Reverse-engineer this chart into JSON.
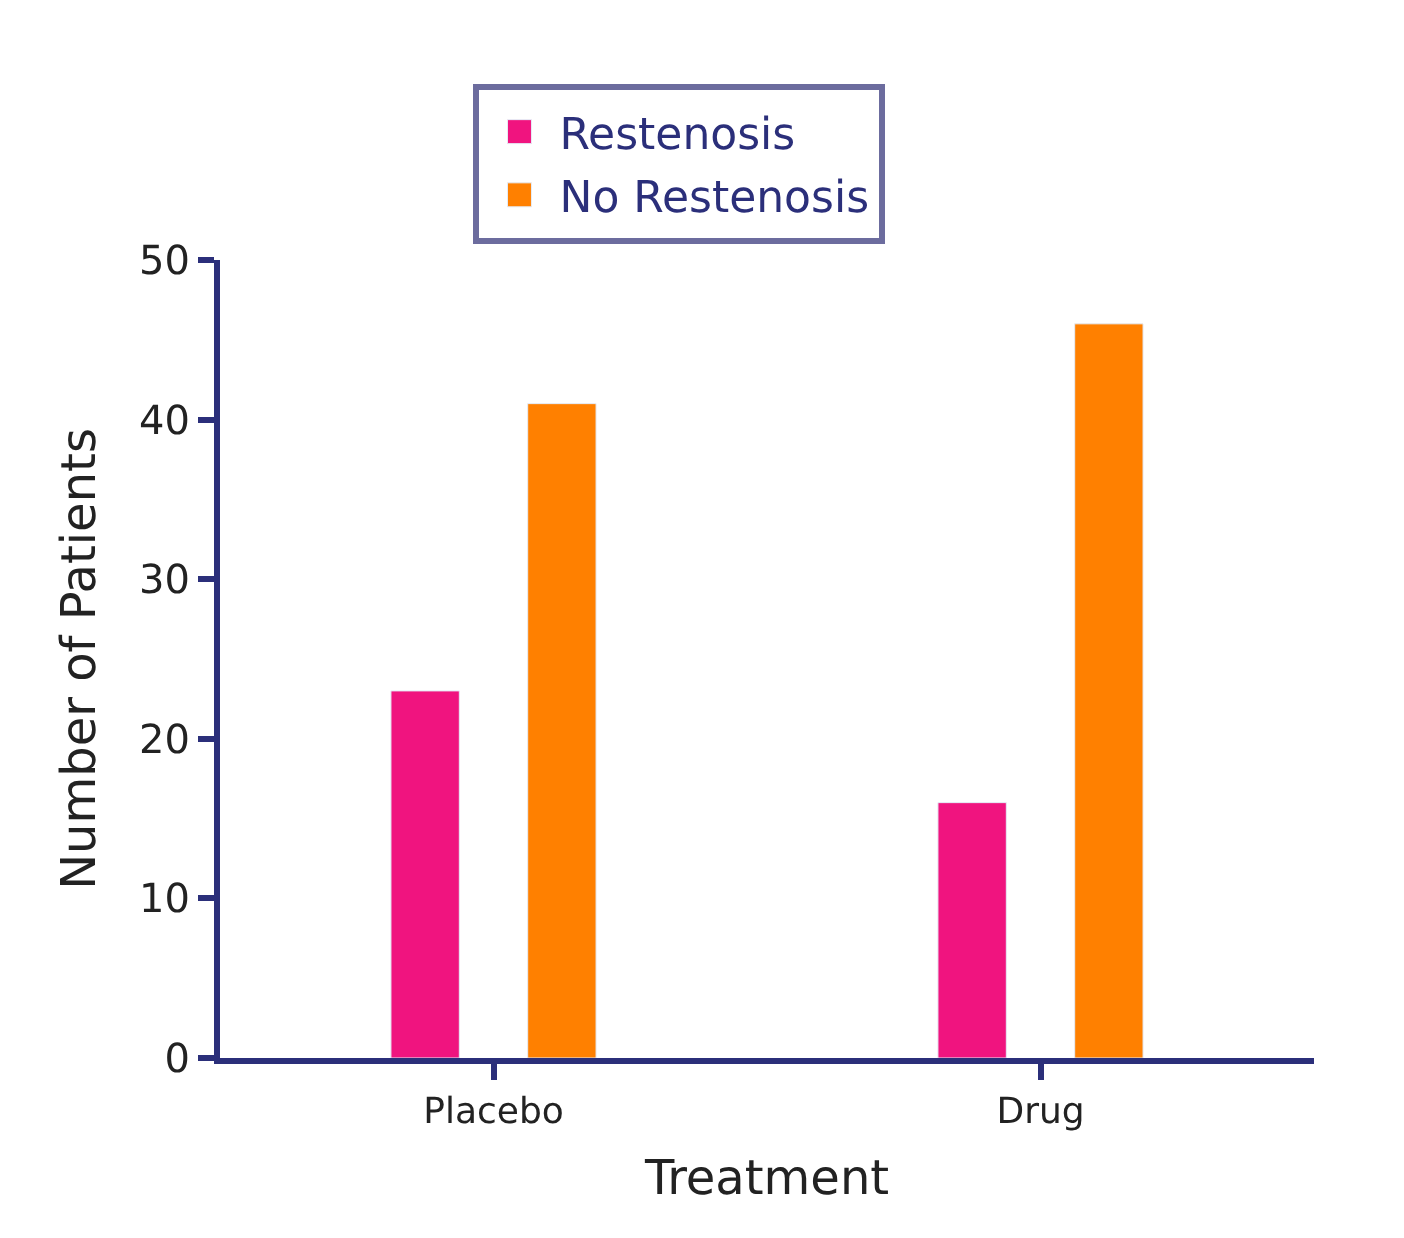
{
  "chart_data": {
    "type": "bar",
    "xlabel": "Treatment",
    "ylabel": "Number of Patients",
    "categories": [
      "Placebo",
      "Drug"
    ],
    "series": [
      {
        "name": "Restenosis",
        "color": "#f0147f",
        "values": [
          23,
          16
        ]
      },
      {
        "name": "No Restenosis",
        "color": "#ff8000",
        "values": [
          41,
          46
        ]
      }
    ],
    "ylim": [
      0,
      50
    ],
    "yticks": [
      0,
      10,
      20,
      30,
      40,
      50
    ],
    "legend": "top"
  }
}
